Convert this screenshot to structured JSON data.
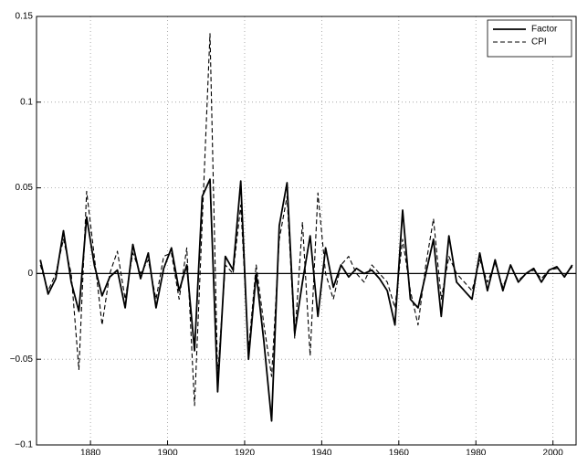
{
  "chart_data": {
    "type": "line",
    "x": [
      1867,
      1869,
      1871,
      1873,
      1875,
      1877,
      1879,
      1881,
      1883,
      1885,
      1887,
      1889,
      1891,
      1893,
      1895,
      1897,
      1899,
      1901,
      1903,
      1905,
      1907,
      1909,
      1911,
      1913,
      1915,
      1917,
      1919,
      1921,
      1923,
      1925,
      1927,
      1929,
      1931,
      1933,
      1935,
      1937,
      1939,
      1941,
      1943,
      1945,
      1947,
      1949,
      1951,
      1953,
      1955,
      1957,
      1959,
      1961,
      1963,
      1965,
      1967,
      1969,
      1971,
      1973,
      1975,
      1977,
      1979,
      1981,
      1983,
      1985,
      1987,
      1989,
      1991,
      1993,
      1995,
      1997,
      1999,
      2001,
      2003,
      2005
    ],
    "series": [
      {
        "name": "Factor",
        "color": "#000000",
        "dash": false,
        "values": [
          0.008,
          -0.012,
          -0.003,
          0.025,
          -0.005,
          -0.022,
          0.033,
          0.005,
          -0.013,
          -0.002,
          0.002,
          -0.02,
          0.017,
          -0.003,
          0.012,
          -0.02,
          0.003,
          0.015,
          -0.01,
          0.005,
          -0.045,
          0.045,
          0.055,
          -0.069,
          0.01,
          0.002,
          0.054,
          -0.05,
          0.0,
          -0.04,
          -0.086,
          0.028,
          0.053,
          -0.035,
          -0.005,
          0.022,
          -0.025,
          0.015,
          -0.008,
          0.005,
          -0.002,
          0.003,
          0.0,
          0.002,
          -0.003,
          -0.01,
          -0.03,
          0.037,
          -0.015,
          -0.02,
          0.0,
          0.02,
          -0.025,
          0.022,
          -0.005,
          -0.01,
          -0.015,
          0.012,
          -0.01,
          0.008,
          -0.01,
          0.005,
          -0.005,
          0.0,
          0.003,
          -0.005,
          0.002,
          0.004,
          -0.002,
          0.005
        ]
      },
      {
        "name": "CPI",
        "color": "#000000",
        "dash": true,
        "values": [
          0.005,
          -0.01,
          0.0,
          0.02,
          0.0,
          -0.056,
          0.048,
          0.01,
          -0.03,
          0.0,
          0.013,
          -0.015,
          0.012,
          0.0,
          0.008,
          -0.015,
          0.01,
          0.012,
          -0.015,
          0.015,
          -0.077,
          0.03,
          0.14,
          -0.06,
          0.005,
          0.0,
          0.04,
          -0.045,
          0.005,
          -0.03,
          -0.06,
          0.02,
          0.045,
          -0.038,
          0.03,
          -0.048,
          0.047,
          0.0,
          -0.015,
          0.005,
          0.01,
          0.0,
          -0.005,
          0.005,
          0.0,
          -0.005,
          -0.02,
          0.02,
          -0.01,
          -0.03,
          0.005,
          0.032,
          -0.015,
          0.01,
          0.0,
          -0.005,
          -0.01,
          0.008,
          -0.005,
          0.006,
          -0.008,
          0.004,
          -0.004,
          0.0,
          0.002,
          -0.003,
          0.002,
          0.003,
          -0.001,
          0.004
        ]
      }
    ],
    "xlim": [
      1866,
      2006
    ],
    "xticks": [
      1880,
      1900,
      1920,
      1940,
      1960,
      1980,
      2000
    ],
    "ylim": [
      -0.1,
      0.15
    ],
    "yticks": [
      {
        "value": -0.1,
        "label": "−0.1"
      },
      {
        "value": -0.05,
        "label": "−0.05"
      },
      0,
      0.05,
      0.1,
      0.15
    ],
    "grid": true,
    "legend": "upper right"
  }
}
